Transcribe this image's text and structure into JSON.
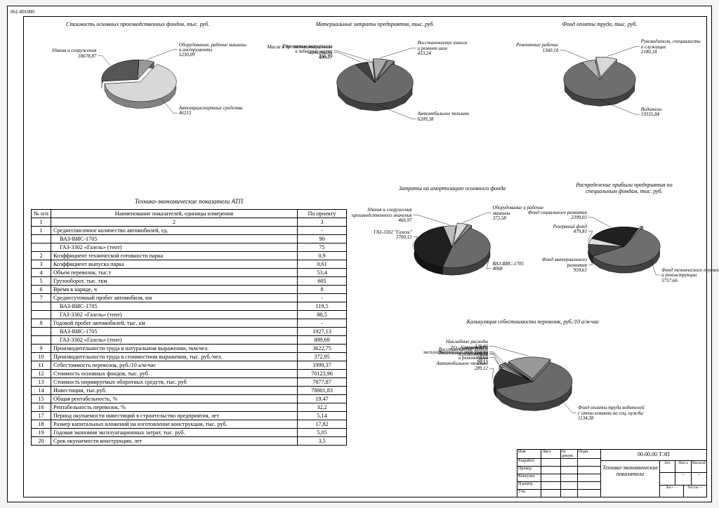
{
  "doc_number": "061-001000",
  "palette": {
    "light": "#e8e8e8",
    "mid": "#808080",
    "dark": "#333333",
    "darker": "#1a1a1a",
    "white": "#fdfdfd",
    "stroke": "#000000"
  },
  "pies": {
    "p1": {
      "title": "Стоимость основных производственных фондов, тыс. руб.",
      "slices": [
        {
          "label": "Автотранспортные средства",
          "value": "46215",
          "pct": 0.66,
          "color": "#d8d8d8",
          "explode": true
        },
        {
          "label": "Здания и сооружения",
          "value": "18678,87",
          "pct": 0.27,
          "color": "#555555"
        },
        {
          "label": "Оборудования, рабочие машины\nи инструменты",
          "value": "5230,09",
          "pct": 0.07,
          "color": "#999999"
        }
      ]
    },
    "p2": {
      "title": "Материальные затраты предприятия, тыс. руб.",
      "slices": [
        {
          "label": "Автомобильное топливо",
          "value": "6209,38",
          "pct": 0.84,
          "color": "#6a6a6a"
        },
        {
          "label": "Масла и др. эксплуатационные\nматериалы",
          "value": "400,17",
          "pct": 0.054,
          "color": "#404040"
        },
        {
          "label": "Ремонтные материалы\nи запасные части",
          "value": "156,95",
          "pct": 0.021,
          "color": "#d0d0d0"
        },
        {
          "label": "Восстановление износа\nи ремонт шин",
          "value": "433,24",
          "pct": 0.058,
          "color": "#aaaaaa",
          "explode": true
        },
        {
          "label": "",
          "value": "",
          "pct": 0.027,
          "color": "#888888",
          "explode": true
        }
      ]
    },
    "p3": {
      "title": "Фонд оплаты труда, тыс. руб.",
      "slices": [
        {
          "label": "Водители",
          "value": "19335,84",
          "pct": 0.845,
          "color": "#6e6e6e"
        },
        {
          "label": "Ремонтные рабочие",
          "value": "1360,10",
          "pct": 0.06,
          "color": "#b0b0b0"
        },
        {
          "label": "Руководители, специалисты\nи служащие",
          "value": "2180,18",
          "pct": 0.095,
          "color": "#d8d8d8",
          "explode": true
        }
      ]
    },
    "p4": {
      "title": "Затраты на амортизацию основного фонда",
      "slices": [
        {
          "label": "ВАЗ-ВИС-1705",
          "value": "4068",
          "pct": 0.465,
          "color": "#6a6a6a"
        },
        {
          "label": "ГАЗ-3302 \"Газель\"",
          "value": "3700,13",
          "pct": 0.423,
          "color": "#202020"
        },
        {
          "label": "Здания и сооружения\nпроизводственного значения",
          "value": "466,97",
          "pct": 0.053,
          "color": "#bcbcbc"
        },
        {
          "label": "Оборудование и рабочие\nмашины",
          "value": "373,58",
          "pct": 0.043,
          "color": "#d8d8d8",
          "explode": true
        },
        {
          "label": "",
          "value": "",
          "pct": 0.016,
          "color": "#999999",
          "explode": true
        }
      ]
    },
    "p5": {
      "title": "Распределение прибыли предприятия по\nспециальным фондам, тыс. руб.",
      "slices": [
        {
          "label": "Фонд технического перевооружения\nи реконструкции",
          "value": "5757,66",
          "pct": 0.594,
          "color": "#6e6e6e"
        },
        {
          "label": "Фонд материального\nразвития",
          "value": "959,61",
          "pct": 0.099,
          "color": "#404040"
        },
        {
          "label": "Резервный фонд",
          "value": "479,81",
          "pct": 0.0495,
          "color": "#dcdcdc"
        },
        {
          "label": "Фонд социального развития",
          "value": "2399,03",
          "pct": 0.248,
          "color": "#202020"
        },
        {
          "label": "",
          "value": "",
          "pct": 0.0095,
          "color": "#aaaaaa",
          "explode": true
        }
      ]
    },
    "p6": {
      "title": "Калькуляция себестоимости перевозок, руб./10 а/м-час",
      "slices": [
        {
          "label": "Фонд оплаты труда водителей\nс отчислениями на соц. нужды",
          "value": "1134,38",
          "pct": 0.62,
          "color": "#6a6a6a"
        },
        {
          "label": "Автомобильное топливо",
          "value": "289,12",
          "pct": 0.158,
          "color": "#303030"
        },
        {
          "label": "Восстановление износа\nи ремонт шин",
          "value": "20,17",
          "pct": 0.011,
          "color": "#d0d0d0"
        },
        {
          "label": "Восстановление износа\nи ремонт шин",
          "value": "20,17",
          "pct": 0.011,
          "color": "#b8b8b8",
          "explode": true
        },
        {
          "label": "ТО и ремонт АТС",
          "value": "18,70",
          "pct": 0.0102,
          "color": "#909090",
          "explode": true
        },
        {
          "label": "Смазочные и\nэксплуатационные материалы",
          "value": "18,63",
          "pct": 0.0102,
          "color": "#707070",
          "explode": true
        },
        {
          "label": "Накладные расходы",
          "value": "328,95",
          "pct": 0.18,
          "color": "#999999",
          "explode": true
        }
      ]
    }
  },
  "table": {
    "title": "Технико-экономические показатели АТП",
    "header": [
      "№ п/п",
      "Наименование показателей, единицы измерения",
      "По проекту"
    ],
    "subheader": [
      "1",
      "2",
      "3"
    ],
    "rows": [
      {
        "n": "1",
        "name": "Среднесписочное количество автомобилей, ед.",
        "v": "-"
      },
      {
        "n": "",
        "name": "ВАЗ-ВИС-1705",
        "v": "90",
        "indent": true
      },
      {
        "n": "",
        "name": "ГАЗ-3302 «Газель» (тент)",
        "v": "75",
        "indent": true
      },
      {
        "n": "2",
        "name": "Коэффициент технической готовности парка",
        "v": "0,9"
      },
      {
        "n": "3",
        "name": "Коэффициент выпуска парка",
        "v": "0,61"
      },
      {
        "n": "4",
        "name": "Объем перевозок, тыс.т",
        "v": "53,4"
      },
      {
        "n": "5",
        "name": "Грузооборот, тыс. ткм",
        "v": "605"
      },
      {
        "n": "6",
        "name": "Время в наряде, ч",
        "v": "8"
      },
      {
        "n": "7",
        "name": "Среднесуточный пробег автомобиля, км",
        "v": "-"
      },
      {
        "n": "",
        "name": "ВАЗ-ВИС-1705",
        "v": "119,5",
        "indent": true
      },
      {
        "n": "",
        "name": "ГАЗ-3302 «Газель» (тент)",
        "v": "88,5",
        "indent": true
      },
      {
        "n": "8",
        "name": "Годовой пробег автомобилей, тыс. км",
        "v": "-"
      },
      {
        "n": "",
        "name": "ВАЗ-ВИС-1705",
        "v": "1927,13",
        "indent": true
      },
      {
        "n": "",
        "name": "ГАЗ-3302 «Газель» (тент)",
        "v": "899,69",
        "indent": true
      },
      {
        "n": "9",
        "name": "Производительности труда в натуральном выражении, ткм/чел.",
        "v": "3622,75"
      },
      {
        "n": "10",
        "name": "Производительности труда в стоимостном выражении, тыс. руб./чел.",
        "v": "372,95"
      },
      {
        "n": "11",
        "name": "Себестоимость перевозок, руб./10 а/м-час",
        "v": "1999,37"
      },
      {
        "n": "12",
        "name": "Стоимость основных фондов, тыс. руб",
        "v": "70123,96"
      },
      {
        "n": "13",
        "name": "Стоимость нормируемых оборотных средств, тыс. руб",
        "v": "7877,87"
      },
      {
        "n": "14",
        "name": "Инвестиции, тыс.руб.",
        "v": "78001,83"
      },
      {
        "n": "15",
        "name": "Общая рентабельность, %",
        "v": "19,47"
      },
      {
        "n": "16",
        "name": "Рентабельность перевозок, %",
        "v": "32,2"
      },
      {
        "n": "17",
        "name": "Период окупаемости инвестиций в строительство предприятия, лет",
        "v": "5,14"
      },
      {
        "n": "18",
        "name": "Размер капитальных вложений на изготовление конструкции, тыс. руб.",
        "v": "17,82"
      },
      {
        "n": "19",
        "name": "Годовая экономия эксплуатационных затрат, тыс. руб.",
        "v": "5,05"
      },
      {
        "n": "20",
        "name": "Срок окупаемости конструкции, лет",
        "v": "3,5"
      }
    ]
  },
  "title_block": {
    "code": "00.00.00 ТЭП",
    "caption": "Технико-экономические\nпоказатели",
    "roles": [
      "Разработ.",
      "Провер.",
      "Консульт.",
      "Н.контр.",
      "Утв."
    ],
    "cols": [
      "Изм",
      "Лист",
      "№ докум.",
      "Подп.",
      "Дата"
    ],
    "meta_top": [
      "Лит.",
      "Масса",
      "Масштаб"
    ],
    "meta_bottom": [
      "Лист —",
      "Листов —"
    ]
  }
}
